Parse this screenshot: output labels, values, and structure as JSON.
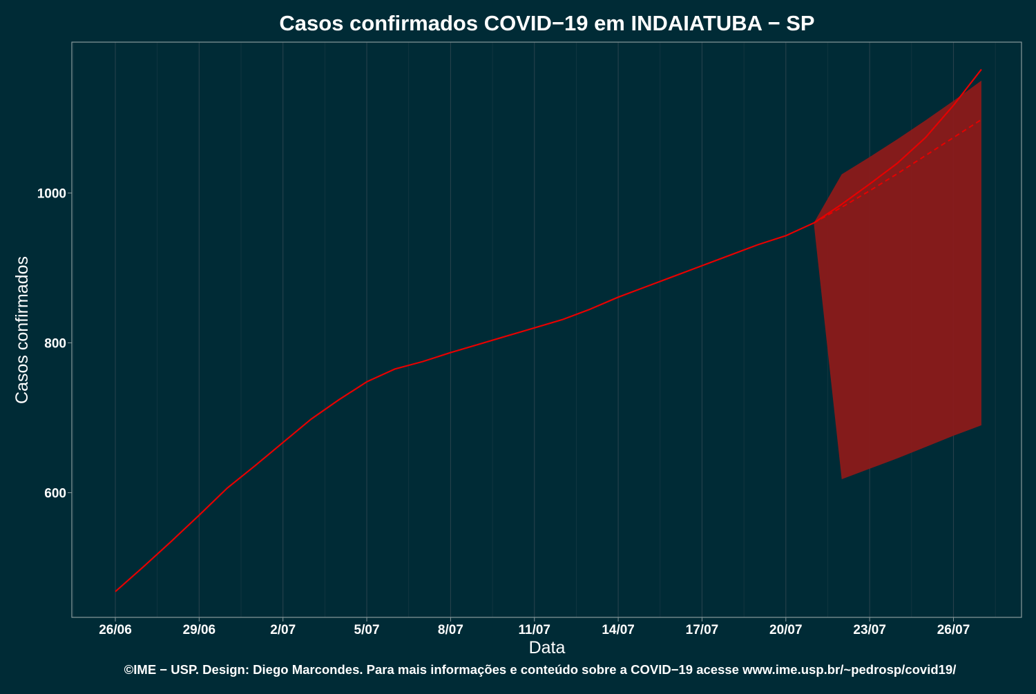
{
  "chart_data": {
    "type": "line",
    "title": "Casos confirmados COVID−19 em INDAIATUBA − SP",
    "xlabel": "Data",
    "ylabel": "Casos confirmados",
    "caption": "©IME − USP. Design: Diego Marcondes. Para mais informações e conteúdo sobre a COVID−19 acesse www.ime.usp.br/~pedrosp/covid19/",
    "x_ticks": [
      "26/06",
      "29/06",
      "2/07",
      "5/07",
      "8/07",
      "11/07",
      "14/07",
      "17/07",
      "20/07",
      "23/07",
      "26/07"
    ],
    "y_ticks": [
      600,
      800,
      1000
    ],
    "ylim": [
      450,
      1200
    ],
    "colors": {
      "background": "#002b36",
      "line": "#e60000",
      "band": "#8b1a1a",
      "grid": "#2e4650",
      "text": "#ffffff"
    },
    "observed": {
      "x": [
        "26/06",
        "27/06",
        "28/06",
        "29/06",
        "30/06",
        "1/07",
        "2/07",
        "3/07",
        "4/07",
        "5/07",
        "6/07",
        "7/07",
        "8/07",
        "9/07",
        "10/07",
        "11/07",
        "12/07",
        "13/07",
        "14/07",
        "15/07",
        "16/07",
        "17/07",
        "18/07",
        "19/07",
        "20/07",
        "21/07"
      ],
      "y": [
        468,
        501,
        535,
        570,
        606,
        636,
        667,
        698,
        724,
        748,
        765,
        775,
        787,
        798,
        809,
        820,
        831,
        845,
        861,
        875,
        889,
        903,
        917,
        931,
        943,
        960
      ]
    },
    "forecast": {
      "x": [
        "21/07",
        "22/07",
        "23/07",
        "24/07",
        "25/07",
        "26/07",
        "27/07"
      ],
      "y": [
        960,
        985,
        1012,
        1040,
        1074,
        1117,
        1165
      ],
      "trend": [
        960,
        981,
        1003,
        1026,
        1050,
        1074,
        1098
      ],
      "lower": [
        960,
        618,
        632,
        646,
        661,
        676,
        690
      ],
      "upper": [
        960,
        1025,
        1048,
        1072,
        1097,
        1123,
        1150
      ]
    }
  }
}
